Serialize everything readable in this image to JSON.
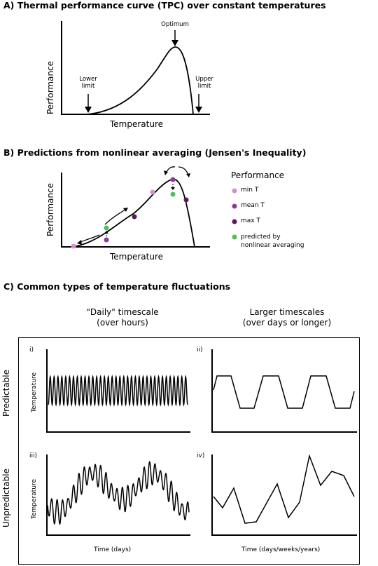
{
  "sectionA": {
    "title": "A) Thermal performance curve (TPC) over constant temperatures",
    "ylabel": "Performance",
    "xlabel": "Temperature",
    "lower_limit": "Lower\nlimit",
    "optimum": "Optimum",
    "upper_limit": "Upper\nlimit"
  },
  "sectionB": {
    "title": "B) Predictions from nonlinear averaging (Jensen's Inequality)",
    "ylabel": "Performance",
    "xlabel": "Temperature",
    "legend_title": "Performance",
    "legend": [
      {
        "label": "min T",
        "color": "#d48fd0"
      },
      {
        "label": "mean T",
        "color": "#8c3a9a"
      },
      {
        "label": "max T",
        "color": "#5b1a5c"
      },
      {
        "label": "predicted by\nnonlinear averaging",
        "color": "#4fc05a"
      }
    ]
  },
  "sectionC": {
    "title": "C) Common types of temperature fluctuations",
    "col1": "\"Daily\" timescale\n(over hours)",
    "col2": "Larger timescales\n(over days or longer)",
    "row1": "Predictable",
    "row2": "Unpredictable",
    "panels": {
      "i": "i)",
      "ii": "ii)",
      "iii": "iii)",
      "iv": "iv)"
    },
    "ylabel": "Temperature",
    "xlabel_left": "Time (days)",
    "xlabel_right": "Time (days/weeks/years)"
  }
}
